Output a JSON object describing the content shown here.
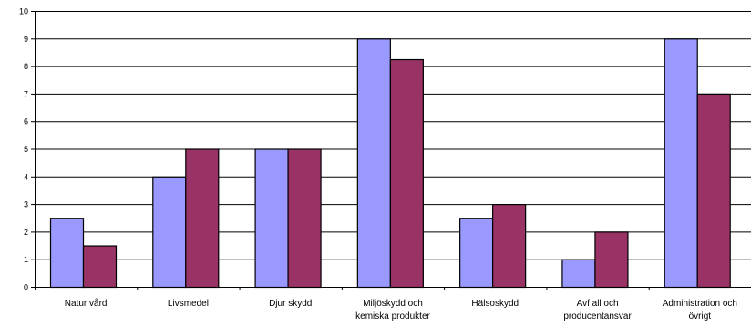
{
  "chart_data": {
    "type": "bar",
    "title": "",
    "xlabel": "",
    "ylabel": "",
    "ylim": [
      0,
      10
    ],
    "yticks": [
      0,
      1,
      2,
      3,
      4,
      5,
      6,
      7,
      8,
      9,
      10
    ],
    "grid": true,
    "legend": "none",
    "categories": [
      [
        "Natur vård"
      ],
      [
        "Livsmedel"
      ],
      [
        "Djur skydd"
      ],
      [
        "Miljöskydd och",
        "kemiska produkter"
      ],
      [
        "Hälsoskydd"
      ],
      [
        "Avf all och",
        "producentansvar"
      ],
      [
        "Administration och",
        "övrigt"
      ]
    ],
    "series": [
      {
        "color": "#9999ff",
        "values": [
          2.5,
          4,
          5,
          9,
          2.5,
          1,
          9
        ]
      },
      {
        "color": "#993366",
        "values": [
          1.5,
          5,
          5,
          8.25,
          3,
          2,
          7
        ]
      }
    ]
  }
}
